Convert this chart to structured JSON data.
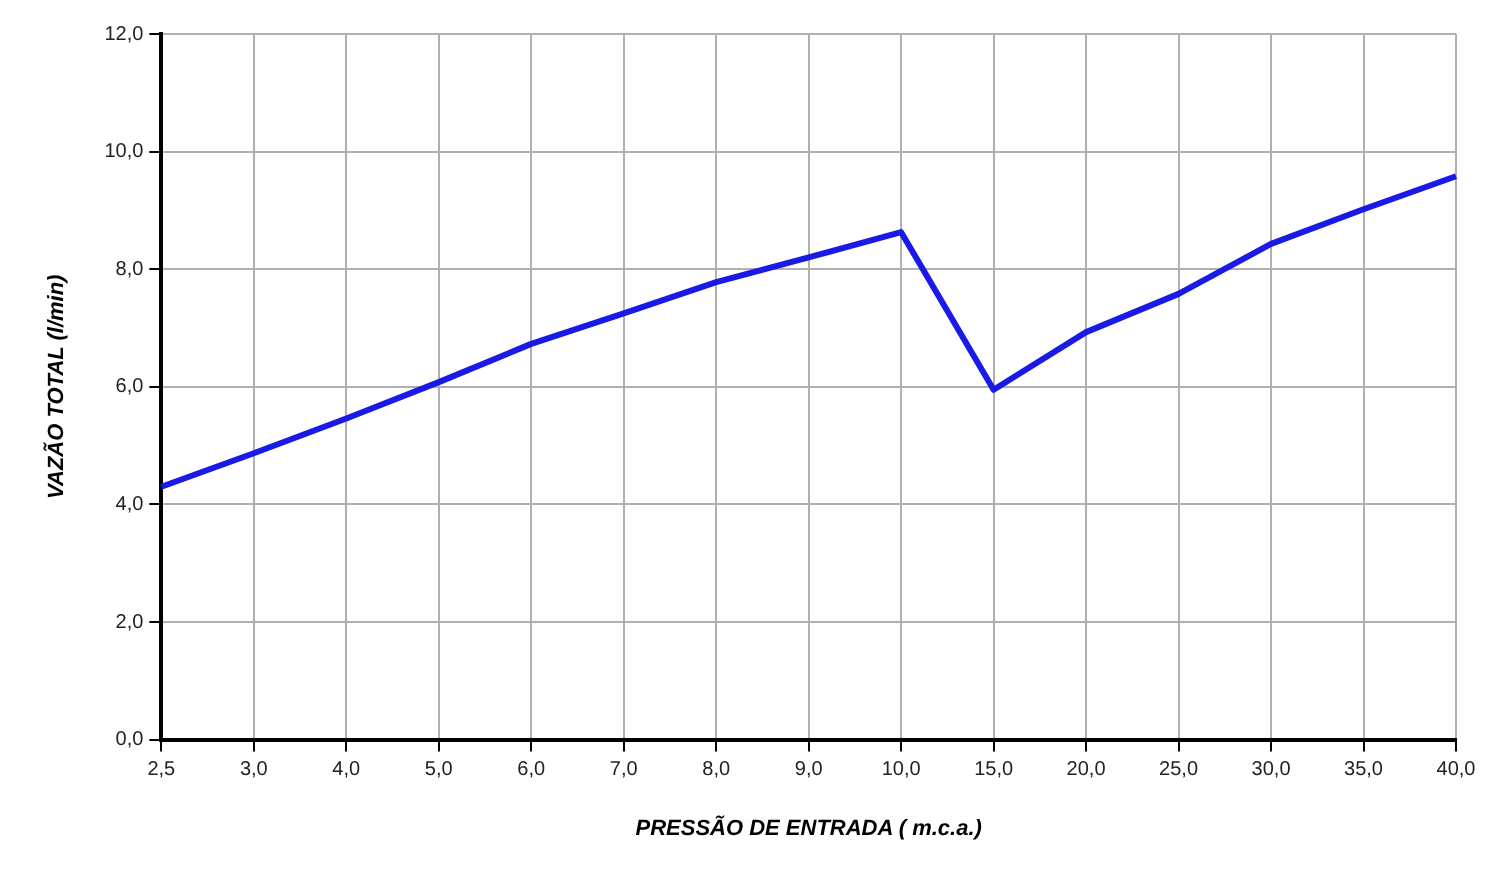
{
  "chart_data": {
    "type": "line",
    "xlabel": "PRESSÃO DE ENTRADA ( m.c.a.)",
    "ylabel": "VAZÃO TOTAL (l/min)",
    "categories": [
      "2,5",
      "3,0",
      "4,0",
      "5,0",
      "6,0",
      "7,0",
      "8,0",
      "9,0",
      "10,0",
      "15,0",
      "20,0",
      "25,0",
      "30,0",
      "35,0",
      "40,0"
    ],
    "series": [
      {
        "color": "#1a1ae6",
        "values": [
          4.3,
          4.87,
          5.46,
          6.08,
          6.73,
          7.25,
          7.78,
          8.2,
          8.63,
          5.95,
          6.93,
          7.58,
          8.43,
          9.02,
          9.58
        ]
      }
    ],
    "ylim": [
      0,
      12
    ],
    "yticks": [
      {
        "value": 0,
        "label": "0,0"
      },
      {
        "value": 2,
        "label": "2,0"
      },
      {
        "value": 4,
        "label": "4,0"
      },
      {
        "value": 6,
        "label": "6,0"
      },
      {
        "value": 8,
        "label": "8,0"
      },
      {
        "value": 10,
        "label": "10,0"
      },
      {
        "value": 12,
        "label": "12,0"
      }
    ],
    "grid": true,
    "legend": false,
    "marker": "none",
    "line_style": "solid"
  }
}
